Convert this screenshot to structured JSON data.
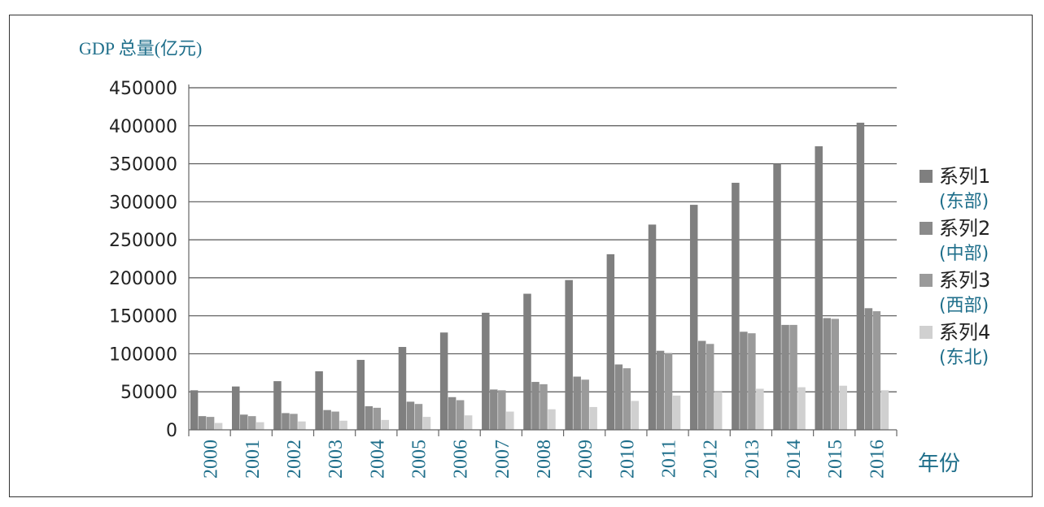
{
  "chart_data": {
    "type": "bar",
    "ylabel": "GDP 总量(亿元)",
    "xlabel": "年份",
    "ylim": [
      0,
      450000
    ],
    "yticks": [
      "0",
      "50000",
      "100000",
      "150000",
      "200000",
      "250000",
      "300000",
      "350000",
      "400000",
      "450000"
    ],
    "categories": [
      "2000",
      "2001",
      "2002",
      "2003",
      "2004",
      "2005",
      "2006",
      "2007",
      "2008",
      "2009",
      "2010",
      "2011",
      "2012",
      "2013",
      "2014",
      "2015",
      "2016"
    ],
    "grid": true,
    "legend_position": "right",
    "series": [
      {
        "name": "系列1",
        "sub": "(东部)",
        "color": "#7f7f7f",
        "values": [
          52000,
          57000,
          64000,
          77000,
          92000,
          109000,
          128000,
          154000,
          179000,
          197000,
          231000,
          270000,
          296000,
          325000,
          350000,
          373000,
          404000
        ]
      },
      {
        "name": "系列2",
        "sub": "(中部)",
        "color": "#8a8a8a",
        "values": [
          18000,
          20000,
          22000,
          26000,
          31000,
          37000,
          43000,
          53000,
          63000,
          70000,
          86000,
          104000,
          117000,
          129000,
          138000,
          147000,
          160000
        ]
      },
      {
        "name": "系列3",
        "sub": "(西部)",
        "color": "#9a9a9a",
        "values": [
          17000,
          18000,
          21000,
          24000,
          29000,
          34000,
          39000,
          52000,
          60000,
          66000,
          81000,
          101000,
          113000,
          127000,
          138000,
          146000,
          156000
        ]
      },
      {
        "name": "系列4",
        "sub": "(东北)",
        "color": "#d0d0d0",
        "values": [
          9000,
          10000,
          11000,
          12000,
          13000,
          17000,
          19000,
          24000,
          27000,
          30000,
          38000,
          45000,
          50000,
          54000,
          56000,
          58000,
          52000
        ]
      }
    ]
  }
}
